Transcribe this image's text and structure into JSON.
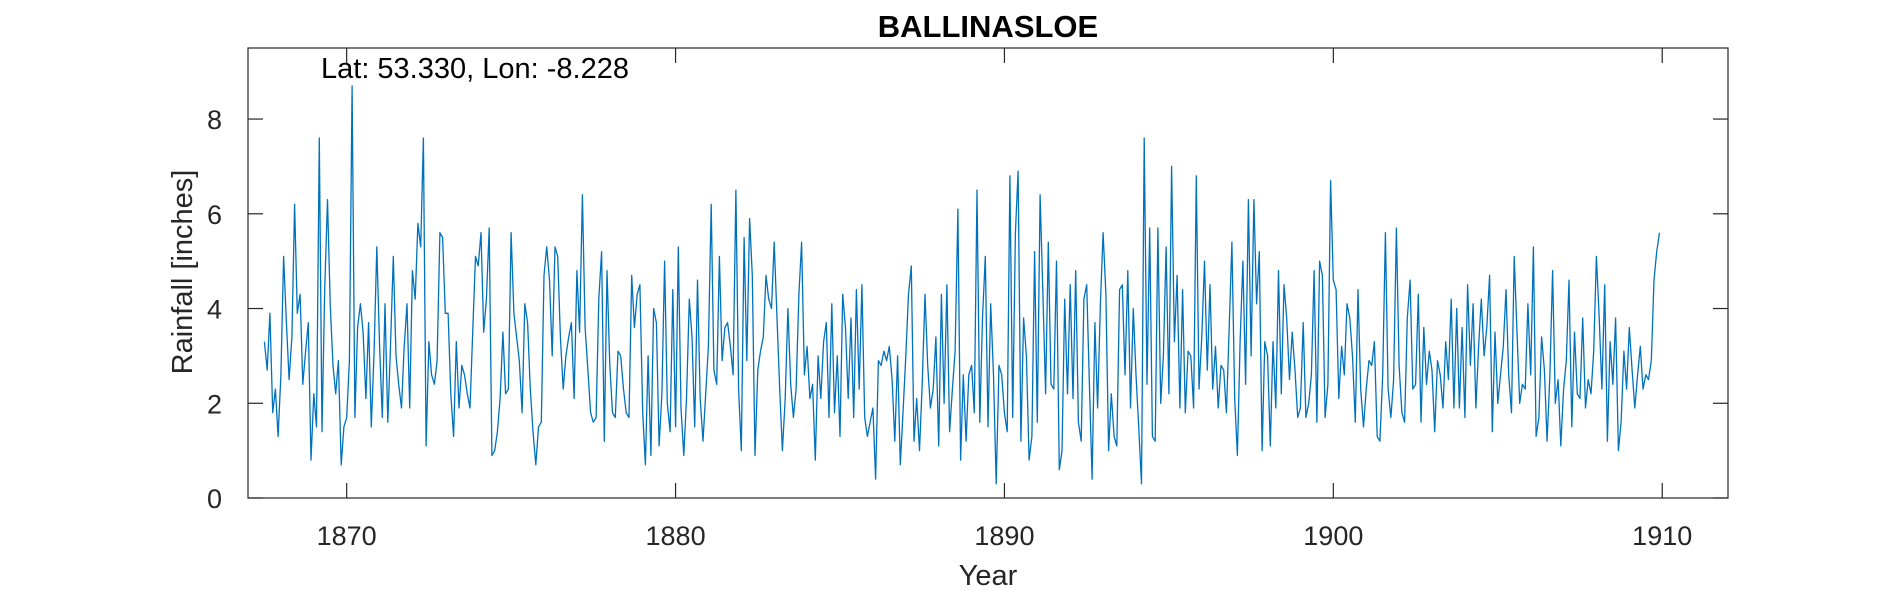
{
  "chart_data": {
    "type": "line",
    "title": "BALLINASLOE",
    "annotation": "Lat: 53.330, Lon: -8.228",
    "xlabel": "Year",
    "ylabel": "Rainfall [inches]",
    "xlim": [
      1867,
      1912
    ],
    "ylim": [
      0,
      9.5
    ],
    "xticks": [
      1870,
      1880,
      1890,
      1900,
      1910
    ],
    "yticks": [
      0,
      2,
      4,
      6,
      8
    ],
    "grid": false,
    "line_color": "#0072BD",
    "series": [
      {
        "x_start": 1867.5,
        "x_step": 0.0833333,
        "values": [
          3.3,
          2.7,
          3.9,
          1.8,
          2.3,
          1.3,
          2.6,
          5.1,
          3.7,
          2.5,
          3.4,
          6.2,
          3.9,
          4.3,
          2.4,
          3.1,
          3.7,
          0.8,
          2.2,
          1.5,
          7.6,
          1.4,
          4.4,
          6.3,
          4.1,
          2.8,
          2.2,
          2.9,
          0.7,
          1.5,
          1.7,
          2.9,
          8.7,
          1.7,
          3.6,
          4.1,
          3.5,
          2.1,
          3.7,
          1.5,
          3.1,
          5.3,
          3.2,
          1.7,
          4.1,
          1.6,
          3.2,
          5.1,
          3.0,
          2.4,
          1.9,
          3.2,
          4.1,
          1.9,
          4.8,
          4.2,
          5.8,
          5.3,
          7.6,
          1.1,
          3.3,
          2.6,
          2.4,
          2.9,
          5.6,
          5.5,
          3.9,
          3.9,
          2.2,
          1.3,
          3.3,
          1.9,
          2.8,
          2.6,
          2.2,
          1.9,
          3.5,
          5.1,
          4.9,
          5.6,
          3.5,
          4.2,
          5.7,
          0.9,
          1.0,
          1.4,
          2.1,
          3.5,
          2.2,
          2.3,
          5.6,
          3.9,
          3.4,
          2.9,
          1.8,
          4.1,
          3.7,
          2.3,
          1.4,
          0.7,
          1.5,
          1.6,
          4.7,
          5.3,
          4.6,
          3.0,
          5.3,
          5.1,
          3.4,
          2.3,
          3.0,
          3.4,
          3.7,
          2.1,
          4.8,
          3.5,
          6.4,
          3.6,
          2.7,
          1.8,
          1.6,
          1.7,
          4.2,
          5.2,
          1.2,
          4.8,
          2.8,
          1.8,
          1.7,
          3.1,
          3.0,
          2.3,
          1.8,
          1.7,
          4.7,
          3.6,
          4.3,
          4.5,
          1.8,
          0.7,
          3.0,
          0.9,
          4.0,
          3.7,
          1.1,
          2.2,
          5.0,
          2.0,
          1.4,
          4.4,
          1.5,
          5.3,
          1.9,
          0.9,
          2.1,
          4.2,
          3.4,
          1.5,
          4.6,
          2.1,
          1.2,
          2.2,
          3.2,
          6.2,
          2.7,
          2.4,
          5.1,
          2.9,
          3.6,
          3.7,
          3.2,
          2.6,
          6.5,
          2.3,
          1.0,
          5.5,
          2.9,
          5.9,
          4.7,
          0.9,
          2.7,
          3.1,
          3.4,
          4.7,
          4.2,
          4.0,
          5.4,
          3.8,
          2.3,
          1.0,
          2.1,
          4.0,
          2.4,
          1.7,
          2.3,
          4.3,
          5.4,
          2.6,
          3.2,
          2.1,
          2.4,
          0.8,
          3.0,
          2.1,
          3.3,
          3.7,
          1.7,
          4.1,
          1.8,
          3.0,
          1.3,
          4.3,
          3.6,
          2.1,
          3.8,
          1.7,
          4.4,
          2.3,
          4.5,
          1.7,
          1.3,
          1.6,
          1.9,
          0.4,
          2.9,
          2.8,
          3.1,
          2.9,
          3.2,
          2.5,
          1.2,
          3.0,
          0.7,
          1.8,
          3.0,
          4.3,
          4.9,
          1.2,
          2.1,
          1.0,
          2.4,
          4.3,
          2.8,
          1.9,
          2.3,
          3.4,
          1.1,
          4.3,
          2.0,
          4.5,
          1.4,
          2.3,
          3.1,
          6.1,
          0.8,
          2.6,
          1.2,
          2.6,
          2.8,
          1.8,
          6.5,
          1.6,
          3.8,
          5.1,
          1.5,
          4.1,
          2.6,
          0.3,
          2.8,
          2.6,
          1.8,
          1.4,
          6.8,
          1.7,
          5.6,
          6.9,
          1.2,
          3.8,
          3.0,
          0.8,
          1.3,
          5.2,
          1.6,
          6.4,
          4.4,
          2.2,
          5.4,
          2.4,
          2.3,
          5.0,
          0.6,
          1.0,
          4.2,
          2.2,
          4.5,
          2.1,
          4.8,
          1.6,
          1.2,
          4.2,
          4.5,
          2.4,
          0.4,
          3.7,
          1.9,
          4.1,
          5.6,
          4.3,
          1.0,
          2.2,
          1.3,
          1.1,
          4.4,
          4.5,
          2.6,
          4.8,
          1.9,
          4.0,
          2.6,
          1.5,
          0.3,
          7.6,
          2.4,
          5.7,
          1.3,
          1.2,
          5.7,
          2.0,
          3.0,
          5.3,
          2.2,
          7.0,
          3.3,
          4.7,
          1.9,
          4.4,
          1.8,
          3.1,
          3.0,
          1.9,
          6.8,
          2.3,
          3.4,
          5.0,
          2.7,
          4.5,
          2.3,
          3.2,
          1.9,
          2.8,
          2.7,
          1.8,
          3.6,
          5.4,
          2.1,
          0.9,
          3.3,
          5.0,
          2.4,
          6.3,
          3.0,
          6.3,
          4.1,
          5.2,
          1.0,
          3.3,
          3.0,
          1.1,
          3.3,
          1.9,
          4.8,
          2.2,
          4.5,
          3.8,
          2.5,
          3.5,
          2.7,
          1.7,
          1.9,
          3.7,
          1.7,
          2.0,
          2.6,
          4.8,
          1.6,
          5.0,
          4.7,
          1.7,
          2.4,
          6.7,
          4.6,
          4.4,
          2.1,
          3.2,
          2.6,
          4.1,
          3.8,
          3.0,
          1.6,
          4.4,
          2.3,
          1.5,
          2.3,
          2.9,
          2.8,
          3.3,
          1.3,
          1.2,
          2.6,
          5.6,
          2.3,
          1.7,
          2.5,
          5.7,
          2.8,
          1.8,
          1.6,
          3.8,
          4.6,
          2.3,
          2.4,
          4.3,
          1.6,
          3.6,
          2.4,
          3.1,
          2.7,
          1.4,
          2.9,
          2.6,
          1.9,
          3.3,
          2.5,
          4.2,
          1.9,
          4.0,
          1.9,
          3.6,
          1.7,
          4.5,
          2.8,
          4.1,
          1.9,
          3.2,
          4.2,
          3.0,
          3.6,
          4.7,
          1.4,
          3.5,
          2.0,
          2.6,
          3.2,
          4.4,
          2.6,
          1.8,
          5.1,
          3.5,
          2.0,
          2.4,
          2.3,
          4.1,
          2.6,
          5.3,
          1.3,
          1.7,
          3.4,
          2.7,
          1.2,
          2.6,
          4.8,
          2.0,
          2.5,
          1.1,
          2.3,
          2.9,
          4.6,
          1.5,
          3.5,
          2.2,
          2.1,
          3.8,
          1.9,
          2.5,
          2.2,
          3.1,
          5.1,
          3.8,
          2.3,
          4.5,
          1.2,
          3.3,
          2.4,
          3.8,
          1.0,
          1.6,
          3.1,
          2.3,
          3.6,
          2.7,
          1.9,
          2.6,
          3.2,
          2.3,
          2.6,
          2.5,
          2.9,
          4.6,
          5.2,
          5.6
        ]
      }
    ]
  }
}
